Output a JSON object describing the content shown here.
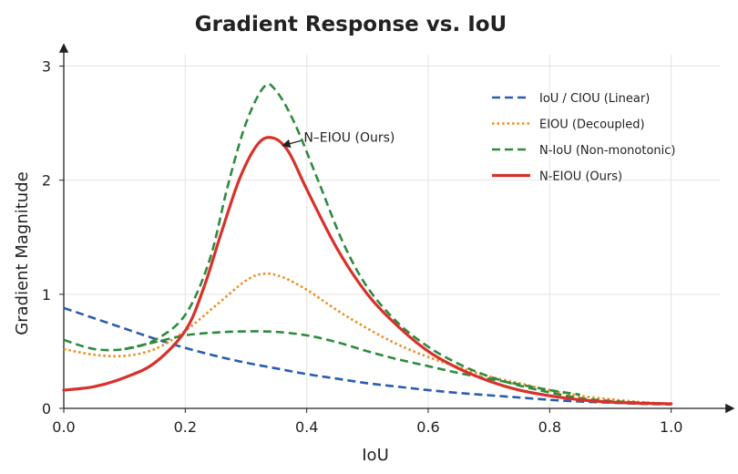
{
  "chart_data": {
    "type": "line",
    "title": "Gradient Response vs. IoU",
    "xlabel": "IoU",
    "ylabel": "Gradient Magnitude",
    "xlim": [
      0,
      1.08
    ],
    "ylim": [
      0,
      3.1
    ],
    "xticks": [
      {
        "value": 0.0,
        "label": "0.0"
      },
      {
        "value": 0.2,
        "label": "0.2"
      },
      {
        "value": 0.4,
        "label": "0.4"
      },
      {
        "value": 0.6,
        "label": "0.6"
      },
      {
        "value": 0.8,
        "label": "0.8"
      },
      {
        "value": 1.0,
        "label": "1.0"
      }
    ],
    "yticks": [
      {
        "value": 0,
        "label": "0"
      },
      {
        "value": 1,
        "label": "1"
      },
      {
        "value": 2,
        "label": "2"
      },
      {
        "value": 3,
        "label": "3"
      }
    ],
    "grid": true,
    "legend_position": "top-right",
    "series": [
      {
        "name": "IoU / CIOU (Linear)",
        "color": "#2a5db0",
        "style": "dashed",
        "points": [
          [
            0.0,
            0.88
          ],
          [
            0.05,
            0.79
          ],
          [
            0.1,
            0.7
          ],
          [
            0.15,
            0.61
          ],
          [
            0.2,
            0.53
          ],
          [
            0.25,
            0.46
          ],
          [
            0.3,
            0.4
          ],
          [
            0.35,
            0.35
          ],
          [
            0.4,
            0.3
          ],
          [
            0.45,
            0.26
          ],
          [
            0.5,
            0.22
          ],
          [
            0.55,
            0.19
          ],
          [
            0.6,
            0.16
          ],
          [
            0.65,
            0.135
          ],
          [
            0.7,
            0.115
          ],
          [
            0.75,
            0.095
          ],
          [
            0.8,
            0.075
          ],
          [
            0.85,
            0.06
          ],
          [
            0.9,
            0.05
          ],
          [
            0.95,
            0.04
          ],
          [
            1.0,
            0.035
          ]
        ]
      },
      {
        "name": "EIOU (Decoupled)",
        "color": "#f08c1e",
        "style": "dotted",
        "points": [
          [
            0.0,
            0.52
          ],
          [
            0.05,
            0.47
          ],
          [
            0.1,
            0.46
          ],
          [
            0.15,
            0.52
          ],
          [
            0.2,
            0.68
          ],
          [
            0.25,
            0.9
          ],
          [
            0.3,
            1.12
          ],
          [
            0.33,
            1.18
          ],
          [
            0.36,
            1.15
          ],
          [
            0.4,
            1.04
          ],
          [
            0.45,
            0.86
          ],
          [
            0.5,
            0.7
          ],
          [
            0.55,
            0.56
          ],
          [
            0.6,
            0.45
          ],
          [
            0.65,
            0.36
          ],
          [
            0.7,
            0.28
          ],
          [
            0.75,
            0.22
          ],
          [
            0.8,
            0.16
          ],
          [
            0.85,
            0.11
          ],
          [
            0.9,
            0.08
          ],
          [
            0.95,
            0.055
          ],
          [
            1.0,
            0.04
          ]
        ]
      },
      {
        "name": "N-IoU (Non-monotonic)",
        "color": "#2e8b3e",
        "style": "dashed",
        "points": [
          [
            0.0,
            0.6
          ],
          [
            0.05,
            0.52
          ],
          [
            0.1,
            0.52
          ],
          [
            0.15,
            0.6
          ],
          [
            0.2,
            0.82
          ],
          [
            0.24,
            1.3
          ],
          [
            0.27,
            1.95
          ],
          [
            0.3,
            2.5
          ],
          [
            0.33,
            2.82
          ],
          [
            0.35,
            2.78
          ],
          [
            0.38,
            2.5
          ],
          [
            0.42,
            1.98
          ],
          [
            0.46,
            1.45
          ],
          [
            0.5,
            1.06
          ],
          [
            0.55,
            0.75
          ],
          [
            0.6,
            0.54
          ],
          [
            0.65,
            0.39
          ],
          [
            0.7,
            0.28
          ],
          [
            0.75,
            0.2
          ],
          [
            0.8,
            0.14
          ],
          [
            0.85,
            0.09
          ],
          [
            0.9,
            0.065
          ],
          [
            0.95,
            0.05
          ],
          [
            1.0,
            0.04
          ]
        ]
      },
      {
        "name": "N-IoU (Non-monotonic) secondary",
        "color": "#2e8b3e",
        "style": "dashed",
        "legend": false,
        "points": [
          [
            0.1,
            0.52
          ],
          [
            0.15,
            0.58
          ],
          [
            0.2,
            0.64
          ],
          [
            0.25,
            0.665
          ],
          [
            0.3,
            0.675
          ],
          [
            0.35,
            0.67
          ],
          [
            0.4,
            0.64
          ],
          [
            0.45,
            0.58
          ],
          [
            0.5,
            0.5
          ],
          [
            0.55,
            0.43
          ],
          [
            0.6,
            0.37
          ],
          [
            0.65,
            0.31
          ],
          [
            0.7,
            0.26
          ],
          [
            0.75,
            0.21
          ],
          [
            0.8,
            0.16
          ],
          [
            0.85,
            0.12
          ]
        ]
      },
      {
        "name": "N-EIOU (Ours)",
        "color": "#d8312a",
        "style": "solid",
        "points": [
          [
            0.0,
            0.16
          ],
          [
            0.05,
            0.19
          ],
          [
            0.1,
            0.27
          ],
          [
            0.15,
            0.4
          ],
          [
            0.2,
            0.68
          ],
          [
            0.23,
            1.05
          ],
          [
            0.26,
            1.55
          ],
          [
            0.29,
            2.02
          ],
          [
            0.32,
            2.32
          ],
          [
            0.345,
            2.37
          ],
          [
            0.37,
            2.25
          ],
          [
            0.4,
            1.92
          ],
          [
            0.45,
            1.4
          ],
          [
            0.5,
            1.0
          ],
          [
            0.55,
            0.72
          ],
          [
            0.6,
            0.5
          ],
          [
            0.65,
            0.35
          ],
          [
            0.7,
            0.24
          ],
          [
            0.75,
            0.16
          ],
          [
            0.8,
            0.11
          ],
          [
            0.85,
            0.075
          ],
          [
            0.9,
            0.055
          ],
          [
            0.95,
            0.045
          ],
          [
            1.0,
            0.04
          ]
        ]
      }
    ],
    "annotations": [
      {
        "text": "N–EIOU (Ours)",
        "x": 0.35,
        "y": 2.37
      }
    ]
  }
}
